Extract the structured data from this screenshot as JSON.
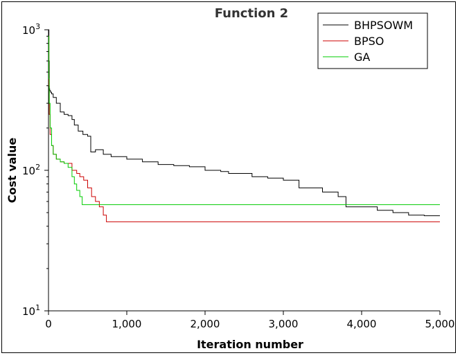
{
  "chart_data": {
    "type": "line",
    "title": "Function 2",
    "xlabel": "Iteration number",
    "ylabel": "Cost value",
    "xlim": [
      0,
      5000
    ],
    "ylim": [
      10,
      1000
    ],
    "yscale": "log",
    "grid": false,
    "legend_position": "top-right",
    "x_ticks": [
      0,
      1000,
      2000,
      3000,
      4000,
      5000
    ],
    "x_tick_labels": [
      "0",
      "1,000",
      "2,000",
      "3,000",
      "4,000",
      "5,000"
    ],
    "y_ticks": [
      10,
      100,
      1000
    ],
    "y_tick_bases": [
      "10",
      "10",
      "10"
    ],
    "y_tick_exps": [
      "1",
      "2",
      "3"
    ],
    "series": [
      {
        "name": "BHPSOWM",
        "color": "#000000",
        "x": [
          0,
          5,
          10,
          15,
          25,
          40,
          60,
          100,
          150,
          200,
          250,
          300,
          330,
          380,
          440,
          500,
          540,
          600,
          700,
          800,
          1000,
          1200,
          1400,
          1600,
          1800,
          2000,
          2200,
          2300,
          2600,
          2800,
          3000,
          3200,
          3500,
          3700,
          3800,
          4200,
          4400,
          4600,
          4800,
          5000
        ],
        "y": [
          1000,
          600,
          380,
          370,
          360,
          350,
          330,
          300,
          260,
          250,
          245,
          230,
          210,
          190,
          180,
          175,
          135,
          140,
          130,
          125,
          120,
          115,
          110,
          108,
          106,
          100,
          98,
          95,
          90,
          88,
          85,
          75,
          70,
          65,
          55,
          52,
          50,
          48,
          47.5,
          47.5
        ]
      },
      {
        "name": "BPSO",
        "color": "#cc0000",
        "x": [
          0,
          5,
          10,
          20,
          40,
          60,
          100,
          150,
          200,
          300,
          360,
          400,
          450,
          500,
          550,
          600,
          650,
          700,
          740,
          800,
          5000
        ],
        "y": [
          900,
          400,
          250,
          180,
          150,
          130,
          120,
          115,
          112,
          100,
          95,
          90,
          85,
          75,
          65,
          60,
          55,
          48,
          43,
          43,
          43
        ]
      },
      {
        "name": "GA",
        "color": "#00cc00",
        "x": [
          0,
          5,
          10,
          20,
          40,
          60,
          100,
          150,
          200,
          250,
          300,
          330,
          360,
          400,
          430,
          440,
          5000
        ],
        "y": [
          900,
          450,
          300,
          200,
          150,
          130,
          120,
          115,
          112,
          105,
          90,
          80,
          72,
          65,
          57,
          57,
          57
        ]
      }
    ]
  }
}
